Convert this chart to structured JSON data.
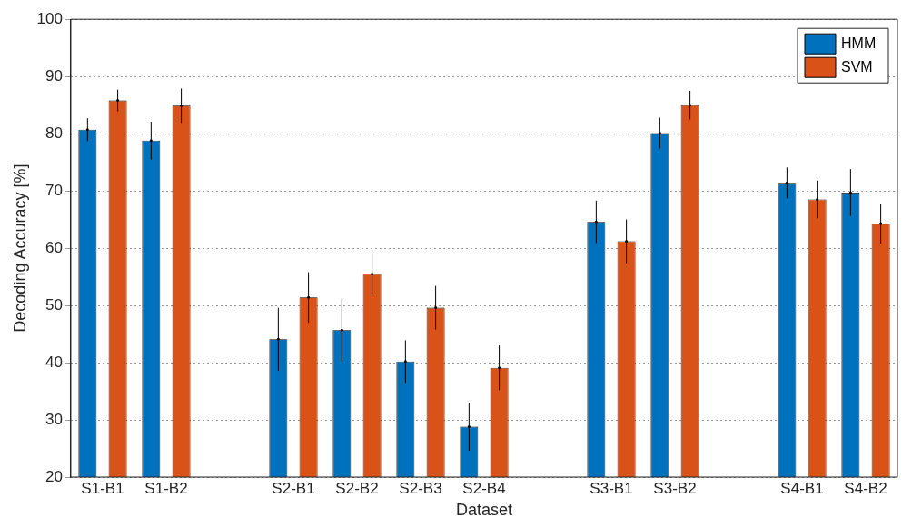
{
  "chart_data": {
    "type": "bar",
    "xlabel": "Dataset",
    "ylabel": "Decoding Accuracy [%]",
    "categories": [
      "S1-B1",
      "S1-B2",
      null,
      "S2-B1",
      "S2-B2",
      "S2-B3",
      "S2-B4",
      null,
      "S3-B1",
      "S3-B2",
      null,
      "S4-B1",
      "S4-B2"
    ],
    "series": [
      {
        "name": "HMM",
        "color": "#0072bd",
        "values": [
          80.7,
          78.8,
          null,
          44.1,
          45.7,
          40.2,
          28.8,
          null,
          64.6,
          80.1,
          null,
          71.4,
          69.7
        ],
        "errors": [
          2,
          3.3,
          null,
          5.5,
          5.5,
          3.7,
          4.2,
          null,
          3.7,
          2.7,
          null,
          2.7,
          4.1
        ]
      },
      {
        "name": "SVM",
        "color": "#d95319",
        "values": [
          85.8,
          84.9,
          null,
          51.4,
          55.5,
          49.6,
          39.1,
          null,
          61.2,
          85.0,
          null,
          68.5,
          64.3
        ],
        "errors": [
          1.9,
          3,
          null,
          4.4,
          4,
          3.8,
          3.9,
          null,
          3.8,
          2.5,
          null,
          3.3,
          3.5
        ]
      }
    ],
    "ylim": [
      20,
      100
    ],
    "yticks": [
      20,
      30,
      40,
      50,
      60,
      70,
      80,
      90,
      100
    ],
    "grid": "y",
    "legend": "top right"
  }
}
